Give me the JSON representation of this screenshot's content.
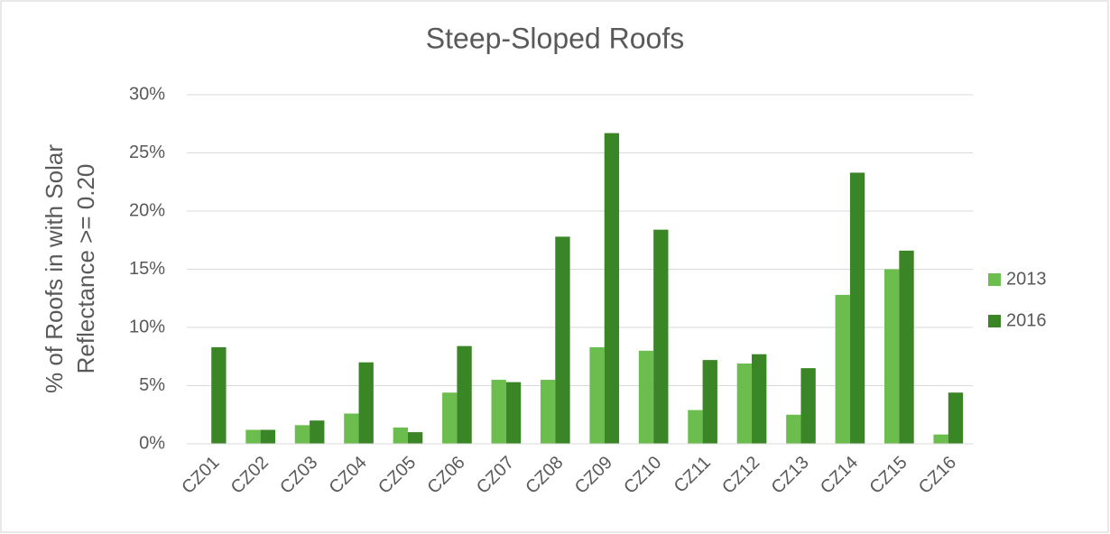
{
  "chart_data": {
    "type": "bar",
    "title": "Steep-Sloped Roofs",
    "ylabel": [
      "% of Roofs in with Solar",
      "Reflectance >= 0.20"
    ],
    "categories": [
      "CZ01",
      "CZ02",
      "CZ03",
      "CZ04",
      "CZ05",
      "CZ06",
      "CZ07",
      "CZ08",
      "CZ09",
      "CZ10",
      "CZ11",
      "CZ12",
      "CZ13",
      "CZ14",
      "CZ15",
      "CZ16"
    ],
    "series": [
      {
        "name": "2013",
        "color": "#6bbd4e",
        "values": [
          0,
          1.2,
          1.6,
          2.6,
          1.4,
          4.4,
          5.5,
          5.5,
          8.3,
          8.0,
          2.9,
          6.9,
          2.5,
          12.8,
          15.0,
          0.8
        ]
      },
      {
        "name": "2016",
        "color": "#3a8526",
        "values": [
          8.3,
          1.2,
          2.0,
          7.0,
          1.0,
          8.4,
          5.3,
          17.8,
          26.7,
          18.4,
          7.2,
          7.7,
          6.5,
          23.3,
          16.6,
          4.4
        ]
      }
    ],
    "ylim": [
      0,
      30
    ],
    "yticks": [
      {
        "value": 0,
        "label": "0%"
      },
      {
        "value": 5,
        "label": "5%"
      },
      {
        "value": 10,
        "label": "10%"
      },
      {
        "value": 15,
        "label": "15%"
      },
      {
        "value": 20,
        "label": "20%"
      },
      {
        "value": 25,
        "label": "25%"
      },
      {
        "value": 30,
        "label": "30%"
      }
    ],
    "grid": true,
    "legend": "right"
  }
}
